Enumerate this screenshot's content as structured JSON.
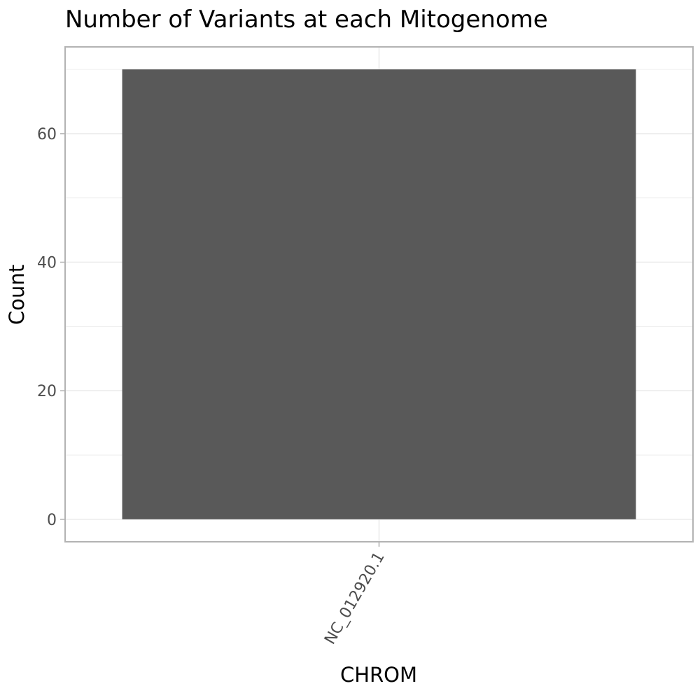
{
  "chart_data": {
    "type": "bar",
    "title": "Number of Variants at each Mitogenome",
    "xlabel": "CHROM",
    "ylabel": "Count",
    "categories": [
      "NC_012920.1"
    ],
    "values": [
      70
    ],
    "ylim": [
      -3.5,
      73.5
    ],
    "yticks": [
      0,
      20,
      40,
      60
    ],
    "grid": true,
    "legend": "none",
    "colors": {
      "bar": "#595959",
      "grid": "#ebebeb",
      "panel_border": "#b3b3b3",
      "tick": "#b3b3b3",
      "tick_label": "#4d4d4d"
    }
  }
}
